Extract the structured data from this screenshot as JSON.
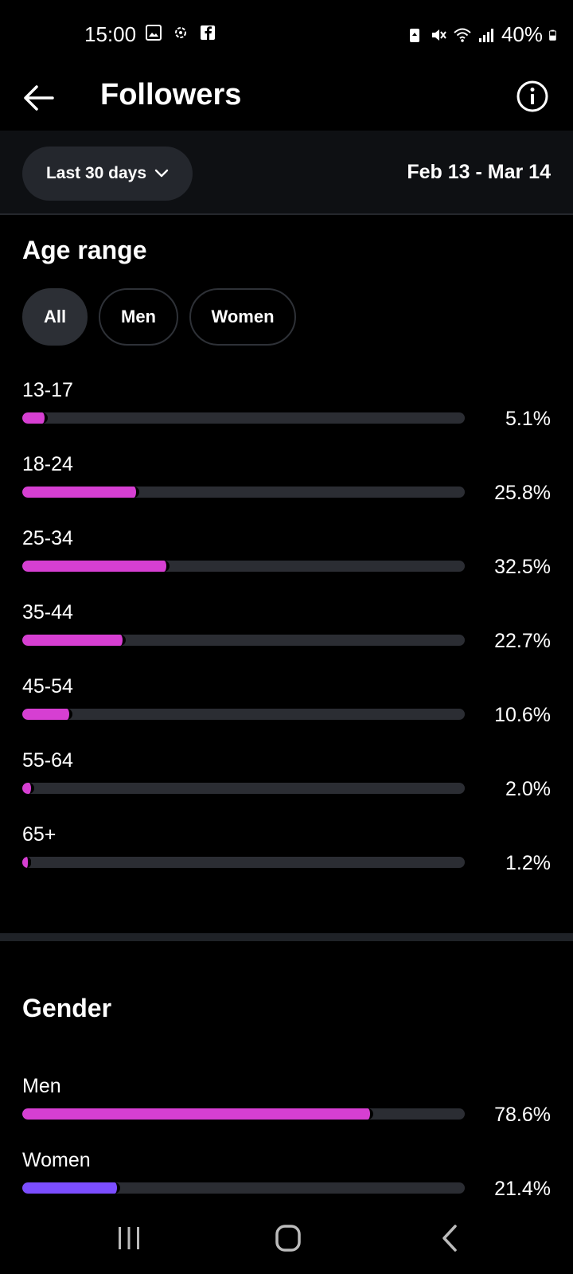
{
  "status_bar": {
    "time": "15:00",
    "battery": "40%",
    "icons_left": [
      "gallery-icon",
      "sync-icon",
      "facebook-icon"
    ],
    "icons_right": [
      "battery-saver-icon",
      "mute-icon",
      "wifi-icon",
      "signal-icon",
      "battery-icon"
    ]
  },
  "header": {
    "title": "Followers"
  },
  "filter": {
    "range_label": "Last 30 days",
    "date_range": "Feb 13 - Mar 14"
  },
  "age_section": {
    "title": "Age range",
    "tabs": [
      {
        "label": "All",
        "active": true
      },
      {
        "label": "Men",
        "active": false
      },
      {
        "label": "Women",
        "active": false
      }
    ],
    "rows": [
      {
        "label": "13-17",
        "percent": "5.1%",
        "value": 5.1
      },
      {
        "label": "18-24",
        "percent": "25.8%",
        "value": 25.8
      },
      {
        "label": "25-34",
        "percent": "32.5%",
        "value": 32.5
      },
      {
        "label": "35-44",
        "percent": "22.7%",
        "value": 22.7
      },
      {
        "label": "45-54",
        "percent": "10.6%",
        "value": 10.6
      },
      {
        "label": "55-64",
        "percent": "2.0%",
        "value": 2.0
      },
      {
        "label": "65+",
        "percent": "1.2%",
        "value": 1.2
      }
    ],
    "bar_color": "#d63fd2"
  },
  "gender_section": {
    "title": "Gender",
    "rows": [
      {
        "label": "Men",
        "percent": "78.6%",
        "value": 78.6,
        "color": "#d63fd2"
      },
      {
        "label": "Women",
        "percent": "21.4%",
        "value": 21.4,
        "color": "#7b4dff"
      }
    ]
  },
  "colors": {
    "track": "#2b2d33",
    "background": "#000000"
  }
}
